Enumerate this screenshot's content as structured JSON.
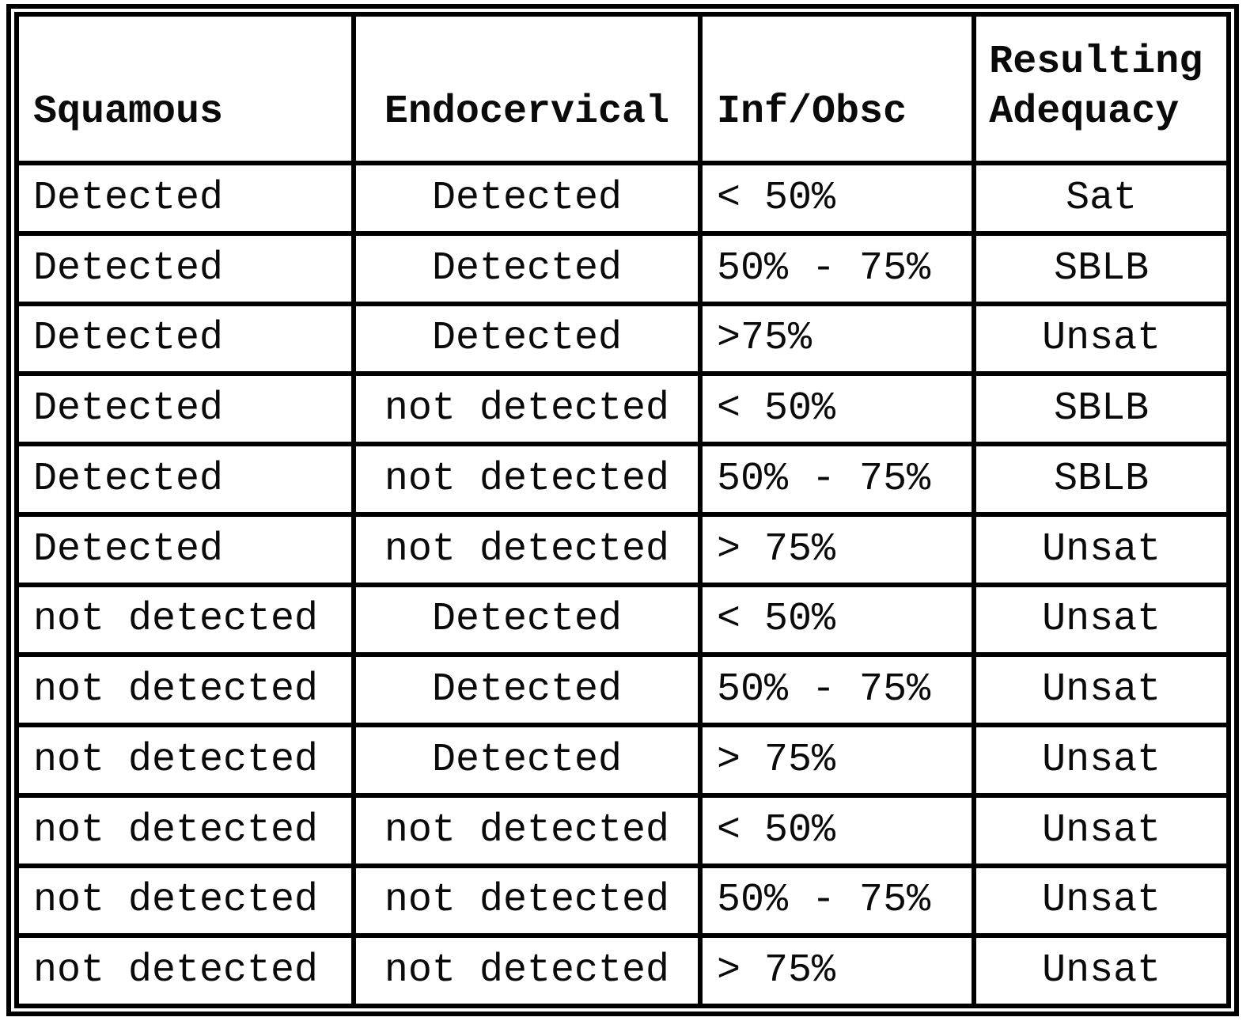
{
  "page": {
    "background": "#ffffff",
    "text_color": "#0a0a0a",
    "border_color": "#000000"
  },
  "table": {
    "headers": [
      {
        "label": "Squamous"
      },
      {
        "label": "Endocervical"
      },
      {
        "label": "Inf/Obsc"
      },
      {
        "line1": "Resulting",
        "line2": "Adequacy"
      }
    ],
    "rows": [
      [
        "Detected",
        "Detected",
        "< 50%",
        "Sat"
      ],
      [
        "Detected",
        "Detected",
        "50% - 75%",
        "SBLB"
      ],
      [
        "Detected",
        "Detected",
        ">75%",
        "Unsat"
      ],
      [
        "Detected",
        "not detected",
        "< 50%",
        "SBLB"
      ],
      [
        "Detected",
        "not detected",
        "50% - 75%",
        "SBLB"
      ],
      [
        "Detected",
        "not detected",
        "> 75%",
        "Unsat"
      ],
      [
        "not detected",
        "Detected",
        "< 50%",
        "Unsat"
      ],
      [
        "not detected",
        "Detected",
        "50% - 75%",
        "Unsat"
      ],
      [
        "not detected",
        "Detected",
        "> 75%",
        "Unsat"
      ],
      [
        "not detected",
        "not detected",
        "< 50%",
        "Unsat"
      ],
      [
        "not detected",
        "not detected",
        "50% - 75%",
        "Unsat"
      ],
      [
        "not detected",
        "not detected",
        "> 75%",
        "Unsat"
      ]
    ]
  }
}
